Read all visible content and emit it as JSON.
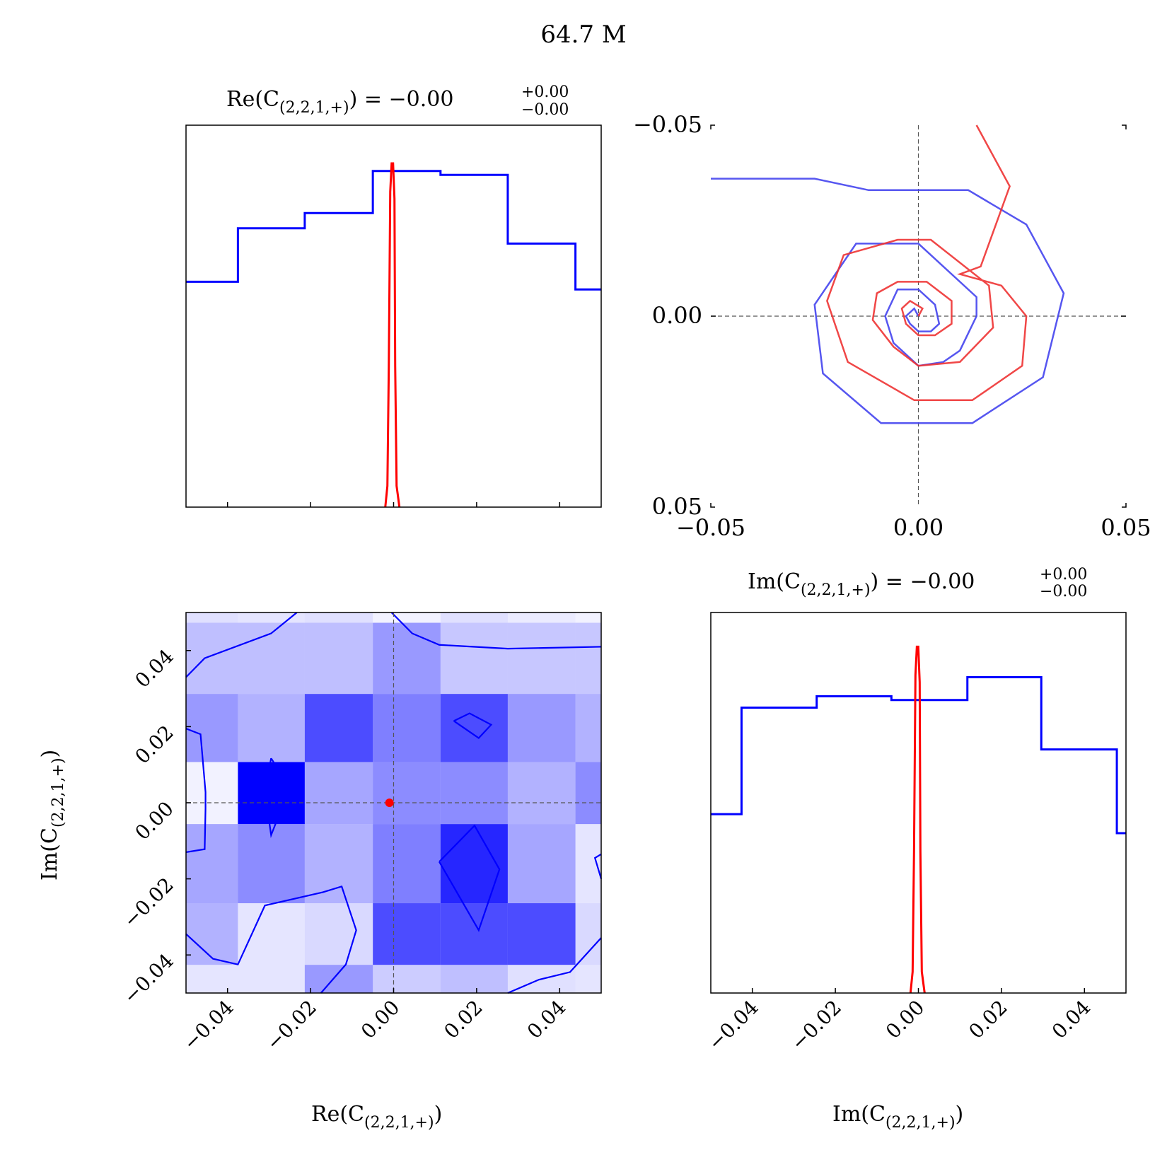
{
  "figure": {
    "title": "64.7 M"
  },
  "panels": {
    "re_hist": {
      "title_main": "Re(C",
      "title_sub": "(2,2,1,+)",
      "title_eq": ") = −0.00",
      "title_sup": "+0.00",
      "title_inf": "−0.00"
    },
    "im_hist": {
      "title_main": "Im(C",
      "title_sub": "(2,2,1,+)",
      "title_eq": ") = −0.00",
      "title_sup": "+0.00",
      "title_inf": "−0.00"
    },
    "corner2d": {
      "xlabel_main": "Re(C",
      "xlabel_sub": "(2,2,1,+)",
      "xlabel_end": ")",
      "ylabel_main": "Im(C",
      "ylabel_sub": "(2,2,1,+)",
      "ylabel_end": ")"
    },
    "spiral": {}
  },
  "axes_labels": {
    "im_xlabel_main": "Im(C",
    "im_xlabel_sub": "(2,2,1,+)",
    "im_xlabel_end": ")"
  },
  "colors": {
    "prior": "#0000ff",
    "posterior": "#ff0000",
    "truth_line": "#555555"
  },
  "chart_data": [
    {
      "type": "histogram",
      "panel": "Re(C(2,2,1,+)) marginal",
      "xlim": [
        -0.05,
        0.05
      ],
      "bin_edges": [
        -0.05,
        -0.0375,
        -0.0214,
        -0.005,
        0.0113,
        0.0275,
        0.0438,
        0.05
      ],
      "prior_heights": [
        0.59,
        0.73,
        0.77,
        0.88,
        0.87,
        0.69,
        0.57
      ],
      "posterior_peak": -0.0003,
      "posterior_height": 0.9,
      "xticks": [
        -0.04,
        -0.02,
        0.0,
        0.02,
        0.04
      ]
    },
    {
      "type": "line",
      "panel": "spiral trajectory",
      "xlim": [
        -0.05,
        0.05
      ],
      "ylim": [
        -0.05,
        0.05
      ],
      "xticks": [
        "−0.05",
        "0.00",
        "0.05"
      ],
      "yticks": [
        "−0.05",
        "0.00",
        "0.05"
      ],
      "series": [
        {
          "color": "#4444ee",
          "x": [
            -0.05,
            -0.025,
            -0.012,
            0.012,
            0.026,
            0.035,
            0.03,
            0.013,
            -0.009,
            -0.023,
            -0.025,
            -0.015,
            0.0,
            0.014,
            0.014,
            0.01,
            0.006,
            0.0,
            -0.006,
            -0.008,
            -0.005,
            0.0,
            0.004,
            0.005,
            0.003,
            0.0,
            -0.002,
            -0.003,
            -0.001,
            0.0
          ],
          "y": [
            0.036,
            0.036,
            0.033,
            0.033,
            0.024,
            0.006,
            -0.016,
            -0.028,
            -0.028,
            -0.015,
            0.003,
            0.019,
            0.019,
            0.005,
            0.0,
            -0.009,
            -0.012,
            -0.013,
            -0.007,
            0.0,
            0.007,
            0.007,
            0.003,
            -0.002,
            -0.004,
            -0.004,
            -0.002,
            0.0,
            0.002,
            0.0
          ]
        },
        {
          "color": "#ee3333",
          "x": [
            0.014,
            0.022,
            0.015,
            0.01,
            0.02,
            0.026,
            0.025,
            0.013,
            -0.001,
            -0.017,
            -0.022,
            -0.018,
            -0.005,
            0.003,
            0.017,
            0.018,
            0.01,
            0.0,
            -0.006,
            -0.011,
            -0.01,
            -0.005,
            0.002,
            0.008,
            0.008,
            0.004,
            0.0,
            -0.003,
            -0.004,
            -0.002,
            0.001,
            0.0
          ],
          "y": [
            0.05,
            0.034,
            0.013,
            0.011,
            0.008,
            0.0,
            -0.013,
            -0.022,
            -0.022,
            -0.012,
            0.004,
            0.016,
            0.02,
            0.02,
            0.008,
            -0.003,
            -0.012,
            -0.013,
            -0.008,
            -0.001,
            0.006,
            0.009,
            0.009,
            0.004,
            -0.002,
            -0.005,
            -0.005,
            -0.002,
            0.002,
            0.004,
            0.002,
            0.0
          ]
        }
      ]
    },
    {
      "type": "heatmap",
      "panel": "Re vs Im 2D density",
      "xlim": [
        -0.05,
        0.05
      ],
      "ylim": [
        -0.05,
        0.05
      ],
      "xticks": [
        -0.04,
        -0.02,
        0.0,
        0.02,
        0.04
      ],
      "yticks": [
        -0.04,
        -0.02,
        0.0,
        0.02,
        0.04
      ],
      "x_edges": [
        -0.05,
        -0.0375,
        -0.0214,
        -0.005,
        0.0113,
        0.0275,
        0.0438,
        0.05
      ],
      "y_edges": [
        -0.05,
        -0.0426,
        -0.0264,
        -0.0056,
        0.0107,
        0.0286,
        0.0473,
        0.05
      ],
      "density_rows_top_to_bottom": [
        [
          0.12,
          0.1,
          0.12,
          0.05,
          0.12,
          0.08,
          0.05
        ],
        [
          0.25,
          0.25,
          0.25,
          0.4,
          0.22,
          0.22,
          0.22
        ],
        [
          0.4,
          0.3,
          0.7,
          0.5,
          0.7,
          0.4,
          0.3
        ],
        [
          0.05,
          1.0,
          0.35,
          0.45,
          0.45,
          0.3,
          0.45
        ],
        [
          0.35,
          0.45,
          0.3,
          0.5,
          0.85,
          0.35,
          0.1
        ],
        [
          0.3,
          0.1,
          0.15,
          0.7,
          0.7,
          0.7,
          0.15
        ],
        [
          0.1,
          0.1,
          0.4,
          0.2,
          0.25,
          0.12,
          0.1
        ]
      ],
      "truth_point": [
        -0.001,
        0.0
      ]
    },
    {
      "type": "histogram",
      "panel": "Im(C(2,2,1,+)) marginal",
      "xlim": [
        -0.05,
        0.05
      ],
      "bin_edges": [
        -0.05,
        -0.0426,
        -0.0245,
        -0.0065,
        0.0118,
        0.0296,
        0.0478,
        0.05
      ],
      "prior_heights": [
        0.47,
        0.75,
        0.78,
        0.77,
        0.83,
        0.64,
        0.42
      ],
      "posterior_peak": -0.0002,
      "posterior_height": 0.91,
      "xticks": [
        -0.04,
        -0.02,
        0.0,
        0.02,
        0.04
      ]
    }
  ]
}
